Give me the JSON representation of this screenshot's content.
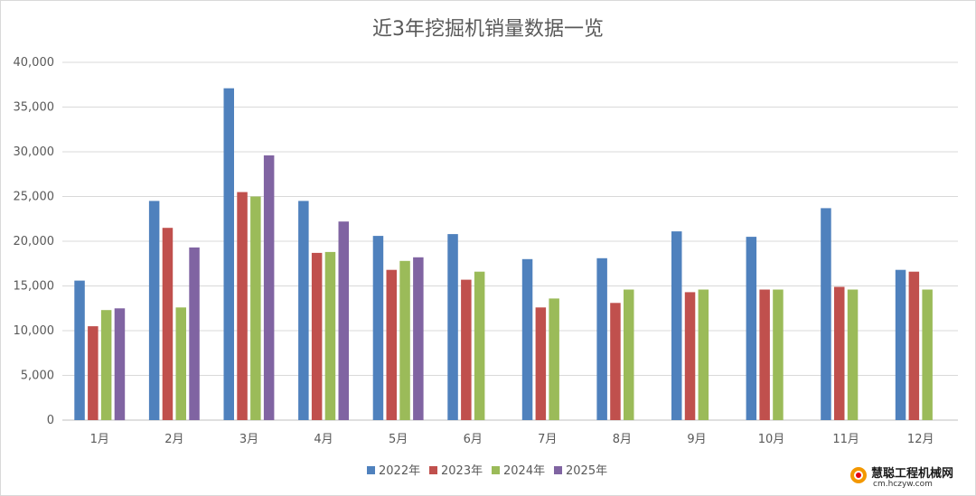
{
  "chart_data": {
    "type": "bar",
    "title": "近3年挖掘机销量数据一览",
    "categories": [
      "1月",
      "2月",
      "3月",
      "4月",
      "5月",
      "6月",
      "7月",
      "8月",
      "9月",
      "10月",
      "11月",
      "12月"
    ],
    "ylim": [
      0,
      40000
    ],
    "yticks": [
      "0",
      "5,000",
      "10,000",
      "15,000",
      "20,000",
      "25,000",
      "30,000",
      "35,000",
      "40,000"
    ],
    "ytick_values": [
      0,
      5000,
      10000,
      15000,
      20000,
      25000,
      30000,
      35000,
      40000
    ],
    "grid": true,
    "legend_position": "bottom",
    "series": [
      {
        "name": "2022年",
        "color": "#4f81bd",
        "values": [
          15600,
          24500,
          37100,
          24500,
          20600,
          20800,
          18000,
          18100,
          21100,
          20500,
          23700,
          16800
        ]
      },
      {
        "name": "2023年",
        "color": "#c0504d",
        "values": [
          10500,
          21500,
          25500,
          18700,
          16800,
          15700,
          12600,
          13100,
          14300,
          14600,
          14900,
          16600
        ]
      },
      {
        "name": "2024年",
        "color": "#9bbb59",
        "values": [
          12300,
          12600,
          25000,
          18800,
          17800,
          16600,
          13600,
          14600,
          14600,
          14600,
          14600,
          14600
        ]
      },
      {
        "name": "2025年",
        "color": "#8064a2",
        "values": [
          12500,
          19300,
          29600,
          22200,
          18200,
          null,
          null,
          null,
          null,
          null,
          null,
          null
        ]
      }
    ]
  },
  "watermark": {
    "name": "慧聪工程机械网",
    "url": "cm.hczyw.com"
  }
}
